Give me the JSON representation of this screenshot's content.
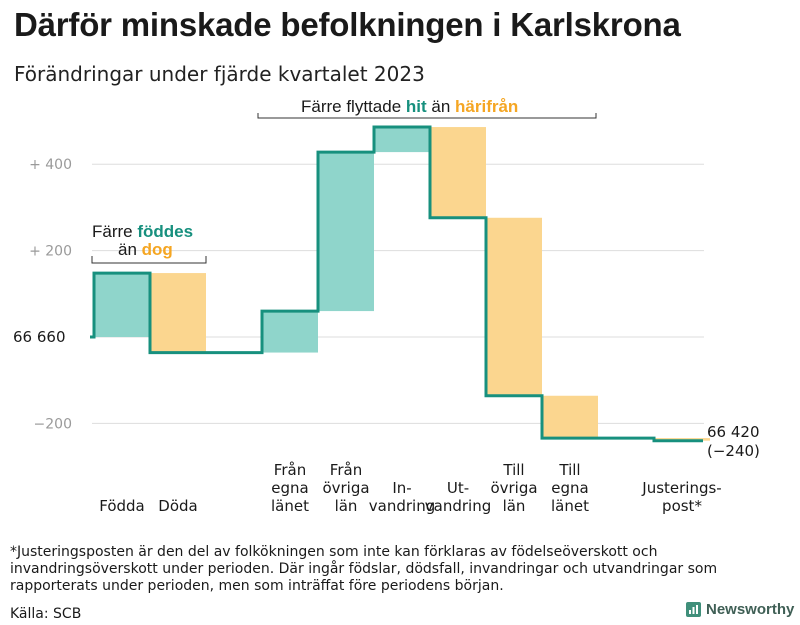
{
  "title": "Därför minskade befolkningen i Karlskrona",
  "subtitle": "Förändringar under fjärde kvartalet 2023",
  "footnote": "*Justeringsposten är den del av folkökningen som inte kan förklaras av födelseöverskott och invandringsöverskott under perioden. Där ingår födslar, dödsfall, invandringar och utvandringar som rapporterats under perioden, men som inträffat före periodens början.",
  "source": "Källa: SCB",
  "logo_text": "Newsworthy",
  "annotations": {
    "births": {
      "line1": "Färre",
      "line1_em": "föddes",
      "line2": "än",
      "line2_em": "dog"
    },
    "moves": {
      "pre": "Färre flyttade",
      "em1": "hit",
      "mid": "än",
      "em2": "härifrån"
    }
  },
  "colors": {
    "increase": "#8fd5cb",
    "decrease": "#fbd68f",
    "line": "#17907e",
    "green_text": "#17907e",
    "orange_text": "#f5a623",
    "grid": "#dddddd"
  },
  "chart_data": {
    "type": "waterfall",
    "start_value": 66660,
    "start_label": "66  660",
    "end_value": 66420,
    "end_label": "66 420",
    "end_change_label": "(−240)",
    "y_ticks": [
      {
        "value": 400,
        "label": "+  400"
      },
      {
        "value": 200,
        "label": "+  200"
      },
      {
        "value": 0,
        "label": ""
      },
      {
        "value": -200,
        "label": "−200"
      }
    ],
    "ylim": [
      -240,
      520
    ],
    "steps": [
      {
        "label": "Födda",
        "change": 148,
        "kind": "increase"
      },
      {
        "label": "Döda",
        "change": -184,
        "kind": "decrease"
      },
      {
        "label": "",
        "change": 0,
        "kind": "gap"
      },
      {
        "label": "Från\negna\nlänet",
        "change": 96,
        "kind": "increase"
      },
      {
        "label": "Från\növriga\nlän",
        "change": 368,
        "kind": "increase"
      },
      {
        "label": "In-\nvandring",
        "change": 58,
        "kind": "increase"
      },
      {
        "label": "Ut-\nvandring",
        "change": -210,
        "kind": "decrease"
      },
      {
        "label": "Till\növriga\nlän",
        "change": -412,
        "kind": "decrease"
      },
      {
        "label": "Till\negna\nlänet",
        "change": -98,
        "kind": "decrease"
      },
      {
        "label": "",
        "change": 0,
        "kind": "gap"
      },
      {
        "label": "Justerings-\npost*",
        "change": -6,
        "kind": "decrease"
      }
    ]
  }
}
